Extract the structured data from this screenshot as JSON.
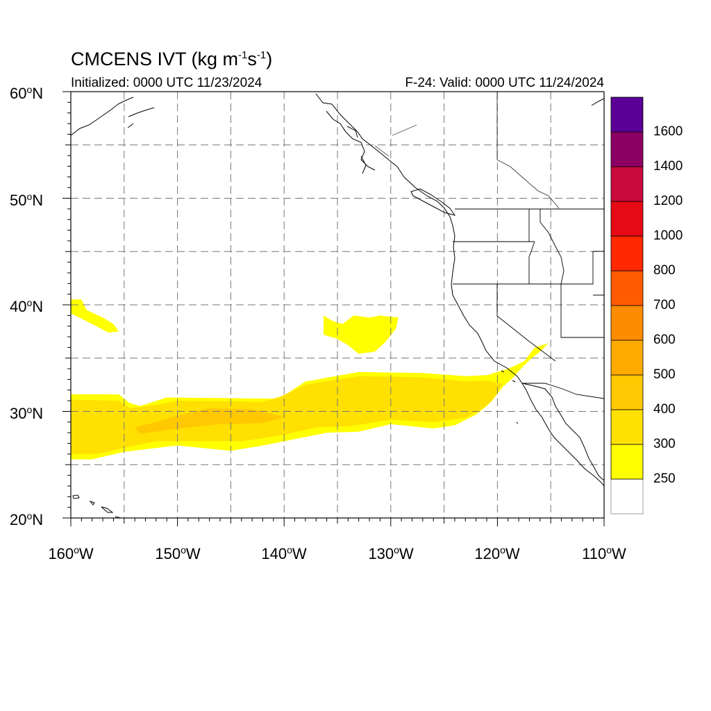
{
  "header": {
    "title_prefix": "CMCENS IVT (kg m",
    "exp1": "-1",
    "title_mid": "s",
    "exp2": "-1",
    "title_suffix": ")",
    "initialized": "Initialized: 0000 UTC 11/23/2024",
    "valid": "F-24: Valid: 0000 UTC 11/24/2024"
  },
  "axes": {
    "lat_labels": [
      {
        "text": "60",
        "hemi": "N"
      },
      {
        "text": "50",
        "hemi": "N"
      },
      {
        "text": "40",
        "hemi": "N"
      },
      {
        "text": "30",
        "hemi": "N"
      },
      {
        "text": "20",
        "hemi": "N"
      }
    ],
    "lon_labels": [
      {
        "text": "160",
        "hemi": "W"
      },
      {
        "text": "150",
        "hemi": "W"
      },
      {
        "text": "140",
        "hemi": "W"
      },
      {
        "text": "130",
        "hemi": "W"
      },
      {
        "text": "120",
        "hemi": "W"
      },
      {
        "text": "110",
        "hemi": "W"
      }
    ],
    "lon_range": [
      -160,
      -110
    ],
    "lat_range": [
      20,
      60
    ],
    "grid": "dashed every 5 degrees"
  },
  "colorbar": {
    "levels": [
      "250",
      "300",
      "400",
      "500",
      "600",
      "700",
      "800",
      "1000",
      "1200",
      "1400",
      "1600"
    ],
    "colors": [
      "#ffffff",
      "#ffff00",
      "#ffe000",
      "#ffc800",
      "#ffaa00",
      "#ff8c00",
      "#ff5a00",
      "#ff2800",
      "#e60a14",
      "#c80a3c",
      "#8c0064",
      "#5a0096"
    ]
  },
  "chart_data": {
    "type": "heatmap",
    "title": "CMCENS IVT (kg m-1s-1)",
    "variable": "IVT",
    "units": "kg m-1 s-1",
    "lon_range": [
      -160,
      -110
    ],
    "lat_range": [
      20,
      60
    ],
    "color_levels": [
      250,
      300,
      400,
      500,
      600,
      700,
      800,
      1000,
      1200,
      1400,
      1600
    ],
    "regions": [
      {
        "category": "250-300",
        "polygon": [
          [
            -160,
            40.5
          ],
          [
            -159,
            40.5
          ],
          [
            -158.5,
            39.5
          ],
          [
            -157,
            38.8
          ],
          [
            -156,
            38.2
          ],
          [
            -155.5,
            37.5
          ],
          [
            -156.5,
            37.4
          ],
          [
            -158,
            38.2
          ],
          [
            -160,
            39.2
          ]
        ]
      },
      {
        "category": "250-300",
        "polygon": [
          [
            -136.3,
            39
          ],
          [
            -135.5,
            38.5
          ],
          [
            -134.5,
            38.2
          ],
          [
            -133.5,
            39
          ],
          [
            -132,
            38.8
          ],
          [
            -131,
            39
          ],
          [
            -129.3,
            38.8
          ],
          [
            -129.5,
            37.8
          ],
          [
            -130.5,
            36.5
          ],
          [
            -131.5,
            35.6
          ],
          [
            -133,
            35.4
          ],
          [
            -134,
            36.2
          ],
          [
            -135,
            36.8
          ],
          [
            -136.3,
            37.2
          ]
        ]
      },
      {
        "category": "250-300",
        "polygon": [
          [
            -160,
            31.6
          ],
          [
            -155.5,
            31.6
          ],
          [
            -154.5,
            30.8
          ],
          [
            -153.5,
            30.5
          ],
          [
            -151,
            31.3
          ],
          [
            -141,
            31.2
          ],
          [
            -140,
            31.5
          ],
          [
            -138,
            32.8
          ],
          [
            -133,
            33.7
          ],
          [
            -127,
            33.6
          ],
          [
            -123,
            33.3
          ],
          [
            -121,
            33.4
          ],
          [
            -119,
            34
          ],
          [
            -117.5,
            34.7
          ],
          [
            -116.5,
            36
          ],
          [
            -115.2,
            36.4
          ],
          [
            -116,
            35.6
          ],
          [
            -117,
            34.8
          ],
          [
            -118,
            33.8
          ],
          [
            -118.5,
            33.2
          ],
          [
            -119.5,
            32.3
          ],
          [
            -120.5,
            31
          ],
          [
            -121,
            30.5
          ],
          [
            -122,
            29.7
          ],
          [
            -124,
            28.7
          ],
          [
            -126,
            28.4
          ],
          [
            -130,
            28.8
          ],
          [
            -133,
            28.1
          ],
          [
            -136,
            28
          ],
          [
            -139,
            27.4
          ],
          [
            -142,
            26.8
          ],
          [
            -145,
            26.3
          ],
          [
            -150,
            26.8
          ],
          [
            -155,
            26.2
          ],
          [
            -158,
            25.5
          ],
          [
            -160,
            25.5
          ]
        ]
      },
      {
        "category": "300-400",
        "polygon": [
          [
            -160,
            31.1
          ],
          [
            -155.5,
            31
          ],
          [
            -154.5,
            30.3
          ],
          [
            -152,
            30.6
          ],
          [
            -150,
            31
          ],
          [
            -142,
            30.9
          ],
          [
            -140.5,
            31.3
          ],
          [
            -138,
            32.5
          ],
          [
            -133,
            33.3
          ],
          [
            -127,
            33.2
          ],
          [
            -123,
            32.8
          ],
          [
            -121,
            32.9
          ],
          [
            -119.5,
            32.6
          ],
          [
            -120.5,
            31
          ],
          [
            -121.5,
            30.2
          ],
          [
            -123,
            29.4
          ],
          [
            -126,
            29
          ],
          [
            -130,
            29.2
          ],
          [
            -134,
            28.6
          ],
          [
            -137,
            28.5
          ],
          [
            -140,
            27.8
          ],
          [
            -144,
            27.2
          ],
          [
            -148,
            27.2
          ],
          [
            -152,
            27.2
          ],
          [
            -155,
            26.6
          ],
          [
            -157.5,
            26
          ],
          [
            -160,
            26
          ]
        ]
      },
      {
        "category": "400-500",
        "polygon": [
          [
            -154,
            28.5
          ],
          [
            -152,
            29
          ],
          [
            -150,
            29.6
          ],
          [
            -147,
            30.3
          ],
          [
            -143,
            30.2
          ],
          [
            -140,
            29.5
          ],
          [
            -142,
            28.9
          ],
          [
            -146,
            28.8
          ],
          [
            -150,
            28.4
          ],
          [
            -153.5,
            27.9
          ]
        ]
      }
    ]
  },
  "map_features": {
    "coastlines": true,
    "country_borders": true,
    "us_state_borders": true
  }
}
